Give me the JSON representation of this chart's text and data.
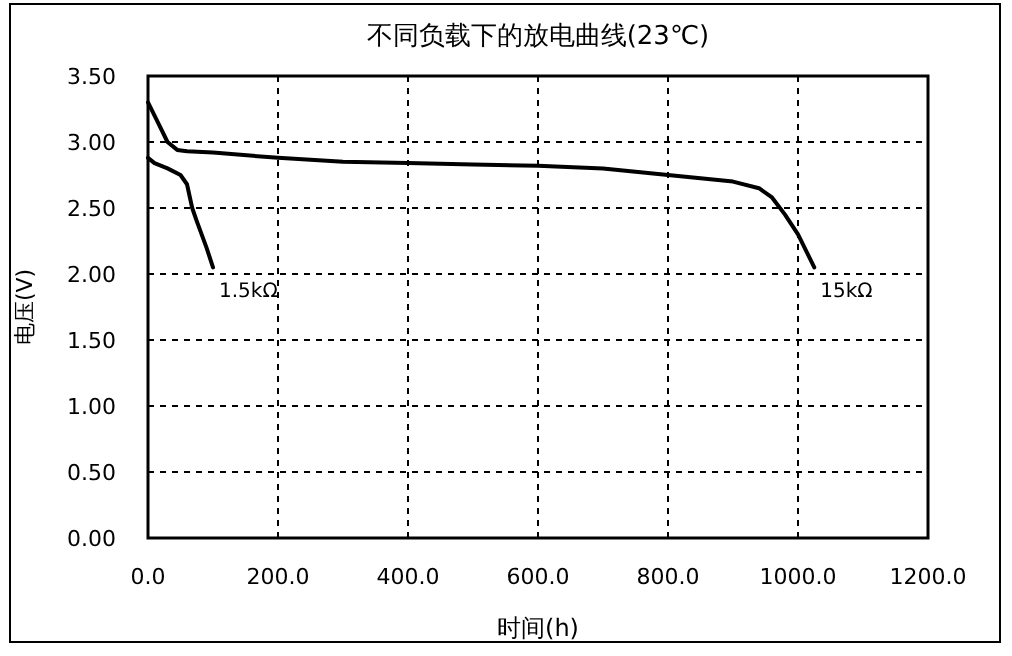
{
  "chart_data": {
    "type": "line",
    "title": "不同负载下的放电曲线(23℃)",
    "xlabel": "时间(h)",
    "ylabel": "电压(V)",
    "xlim": [
      0,
      1200
    ],
    "ylim": [
      0,
      3.5
    ],
    "xticks": [
      {
        "value": 0,
        "label": "0.0"
      },
      {
        "value": 200,
        "label": "200.0"
      },
      {
        "value": 400,
        "label": "400.0"
      },
      {
        "value": 600,
        "label": "600.0"
      },
      {
        "value": 800,
        "label": "800.0"
      },
      {
        "value": 1000,
        "label": "1000.0"
      },
      {
        "value": 1200,
        "label": "1200.0"
      }
    ],
    "yticks": [
      {
        "value": 0,
        "label": "0.00"
      },
      {
        "value": 0.5,
        "label": "0.50"
      },
      {
        "value": 1,
        "label": "1.00"
      },
      {
        "value": 1.5,
        "label": "1.50"
      },
      {
        "value": 2,
        "label": "2.00"
      },
      {
        "value": 2.5,
        "label": "2.50"
      },
      {
        "value": 3,
        "label": "3.00"
      },
      {
        "value": 3.5,
        "label": "3.50"
      }
    ],
    "grid": true,
    "line_style": "solid",
    "marker": "none",
    "legend": false,
    "series": [
      {
        "name": "1.5kΩ",
        "color": "#000000",
        "x": [
          0,
          10,
          30,
          50,
          60,
          68,
          75,
          90,
          100
        ],
        "values": [
          2.88,
          2.84,
          2.8,
          2.75,
          2.68,
          2.5,
          2.4,
          2.2,
          2.05
        ]
      },
      {
        "name": "15kΩ",
        "color": "#000000",
        "x": [
          0,
          15,
          30,
          45,
          60,
          100,
          200,
          300,
          400,
          500,
          600,
          700,
          800,
          900,
          940,
          960,
          980,
          1000,
          1015,
          1025
        ],
        "values": [
          3.3,
          3.15,
          3.0,
          2.94,
          2.93,
          2.92,
          2.88,
          2.85,
          2.84,
          2.83,
          2.82,
          2.8,
          2.75,
          2.7,
          2.65,
          2.58,
          2.45,
          2.3,
          2.15,
          2.05
        ]
      }
    ]
  }
}
